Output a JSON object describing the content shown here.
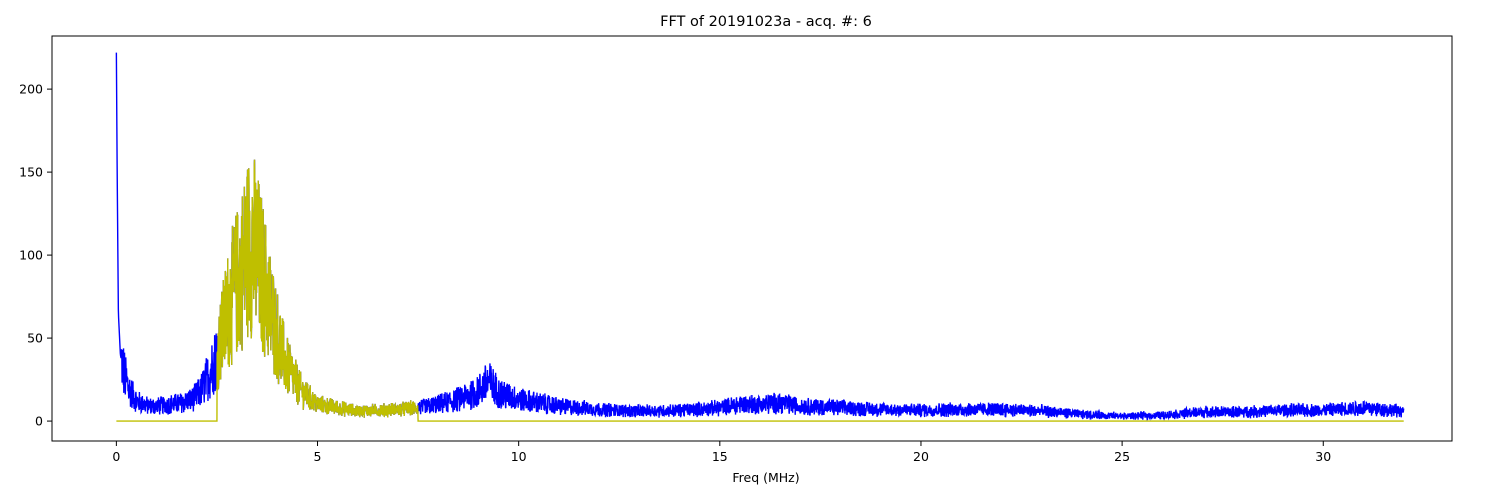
{
  "chart_data": {
    "type": "line",
    "title": "FFT of 20191023a - acq. #: 6",
    "xlabel": "Freq (MHz)",
    "ylabel": "",
    "xlim": [
      -1.6,
      33.2
    ],
    "ylim": [
      -12,
      232
    ],
    "xticks": [
      0,
      5,
      10,
      15,
      20,
      25,
      30
    ],
    "xtick_labels": [
      "0",
      "5",
      "10",
      "15",
      "20",
      "25",
      "30"
    ],
    "yticks": [
      0,
      50,
      100,
      150,
      200
    ],
    "ytick_labels": [
      "0",
      "50",
      "100",
      "150",
      "200"
    ],
    "grid": false,
    "legend": "none",
    "colors": {
      "spectrum": "#0000ff",
      "filtered": "#bfbf00",
      "axes": "#000000",
      "background": "#ffffff"
    },
    "series": [
      {
        "role": "full-spectrum",
        "color": "#0000ff",
        "x_range": [
          0,
          32
        ],
        "envelope": [
          [
            0.0,
            222
          ],
          [
            0.02,
            150
          ],
          [
            0.05,
            65
          ],
          [
            0.1,
            40
          ],
          [
            0.2,
            28
          ],
          [
            0.3,
            20
          ],
          [
            0.5,
            12
          ],
          [
            0.8,
            9
          ],
          [
            1.0,
            9
          ],
          [
            1.3,
            10
          ],
          [
            1.6,
            11
          ],
          [
            1.9,
            13
          ],
          [
            2.1,
            18
          ],
          [
            2.3,
            28
          ],
          [
            2.5,
            40
          ],
          [
            2.8,
            70
          ],
          [
            3.1,
            90
          ],
          [
            3.35,
            110
          ],
          [
            3.6,
            90
          ],
          [
            3.9,
            60
          ],
          [
            4.2,
            35
          ],
          [
            4.6,
            18
          ],
          [
            5.0,
            10
          ],
          [
            6.0,
            6
          ],
          [
            7.0,
            7
          ],
          [
            7.5,
            8
          ],
          [
            8.0,
            10
          ],
          [
            8.5,
            13
          ],
          [
            9.0,
            18
          ],
          [
            9.25,
            24
          ],
          [
            9.5,
            17
          ],
          [
            10.0,
            13
          ],
          [
            10.5,
            11
          ],
          [
            11.0,
            9
          ],
          [
            12.0,
            7
          ],
          [
            13.0,
            6
          ],
          [
            14.0,
            6.5
          ],
          [
            15.0,
            8
          ],
          [
            15.5,
            10
          ],
          [
            16.0,
            10
          ],
          [
            16.5,
            11
          ],
          [
            17.0,
            9
          ],
          [
            18.0,
            8
          ],
          [
            19.0,
            7
          ],
          [
            20.0,
            6.5
          ],
          [
            21.0,
            7
          ],
          [
            22.0,
            7
          ],
          [
            23.0,
            6
          ],
          [
            24.0,
            4
          ],
          [
            25.0,
            3
          ],
          [
            26.0,
            3.5
          ],
          [
            27.0,
            5.5
          ],
          [
            28.0,
            5.5
          ],
          [
            29.0,
            6.5
          ],
          [
            30.0,
            6.5
          ],
          [
            31.0,
            8
          ],
          [
            32.0,
            6
          ]
        ]
      },
      {
        "role": "band-filtered",
        "color": "#bfbf00",
        "x_range": [
          0,
          32
        ],
        "pass_band": [
          2.5,
          7.5
        ],
        "value_outside_band": 0
      }
    ]
  }
}
